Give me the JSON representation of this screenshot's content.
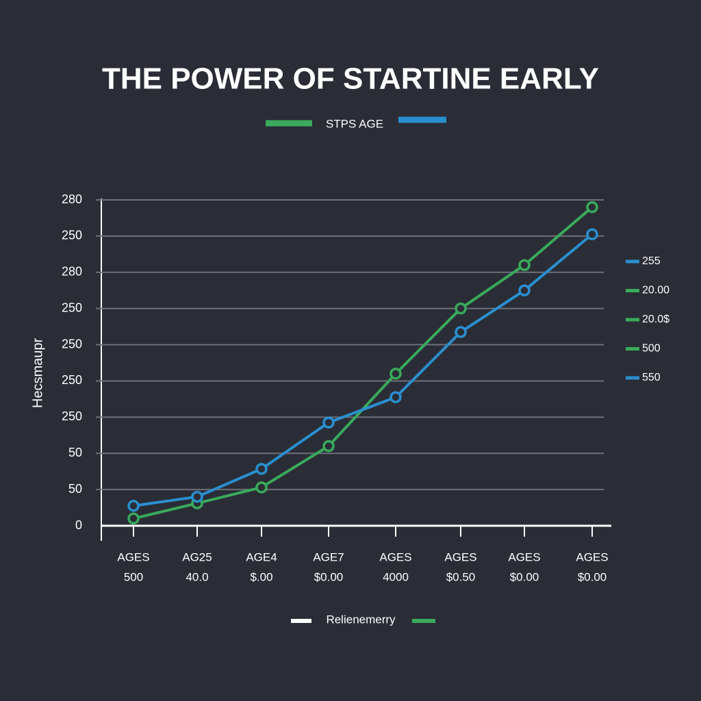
{
  "chart_data": {
    "type": "line",
    "title": "THE POWER OF STARTINE EARLY",
    "legend_label": "STPS AGE",
    "y_label": "Hecsmaupr",
    "bottom_legend_label": "Relienemerry",
    "categories": [
      "AGES",
      "AG25",
      "AGE4",
      "AGE7",
      "AGES",
      "AGES",
      "AGES",
      "AGES"
    ],
    "category_sublabels": [
      "500",
      "40.0",
      "$.00",
      "$0.00",
      "4000",
      "$0.50",
      "$0.00",
      "$0.00"
    ],
    "series": [
      {
        "color": "#3aaa5c",
        "values": [
          0.2,
          0.62,
          1.06,
          2.2,
          4.2,
          6.0,
          7.2,
          8.8
        ]
      },
      {
        "color": "#2a8fcf",
        "values": [
          0.55,
          0.8,
          1.57,
          2.85,
          3.55,
          5.35,
          6.5,
          8.05
        ]
      }
    ],
    "ylim": [
      0,
      9
    ],
    "yticks": [
      0,
      {
        "value": 1,
        "label": "50"
      },
      {
        "value": 2,
        "label": "50"
      },
      {
        "value": 3,
        "label": "250"
      },
      {
        "value": 4,
        "label": "250"
      },
      {
        "value": 5,
        "label": "250"
      },
      {
        "value": 6,
        "label": "250"
      },
      {
        "value": 7,
        "label": "280"
      },
      {
        "value": 8,
        "label": "250"
      },
      {
        "value": 9,
        "label": "280"
      }
    ],
    "grid": true,
    "side_labels": [
      {
        "text": "255",
        "color": "#2a8fcf"
      },
      {
        "text": "20.00",
        "color": "#3aaa5c"
      },
      {
        "text": "20.0$",
        "color": "#3aaa5c"
      },
      {
        "text": "500",
        "color": "#3aaa5c"
      },
      {
        "text": "550",
        "color": "#2a8fcf"
      }
    ]
  }
}
